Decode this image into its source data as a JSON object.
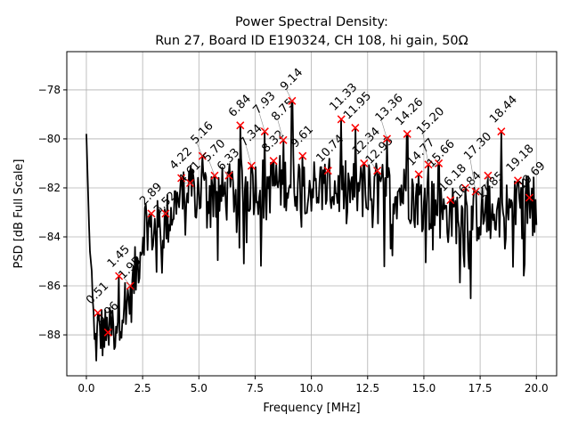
{
  "chart_data": {
    "type": "line",
    "title_line1": "Power Spectral Density:",
    "title_line2": "Run 27, Board ID E190324, CH 108, hi gain, 50Ω",
    "xlabel": "Frequency [MHz]",
    "ylabel": "PSD [dB Full Scale]",
    "xlim": [
      -0.87,
      20.9
    ],
    "ylim": [
      -89.67,
      -76.44
    ],
    "xticks": [
      0,
      2.5,
      5,
      7.5,
      10,
      12.5,
      15,
      17.5,
      20
    ],
    "xtick_labels": [
      "0.0",
      "2.5",
      "5.0",
      "7.5",
      "10.0",
      "12.5",
      "15.0",
      "17.5",
      "20.0"
    ],
    "yticks": [
      -88,
      -86,
      -84,
      -82,
      -80,
      -78
    ],
    "ytick_labels": [
      "−88",
      "−86",
      "−84",
      "−82",
      "−80",
      "−78"
    ],
    "grid": true,
    "line_color": "#000000",
    "marker_color": "#ff0000",
    "peaks": [
      {
        "label": "0.51",
        "x": 0.51,
        "y": -87.1
      },
      {
        "label": "0.96",
        "x": 0.96,
        "y": -87.9
      },
      {
        "label": "1.45",
        "x": 1.45,
        "y": -85.6
      },
      {
        "label": "1.95",
        "x": 1.95,
        "y": -86.0
      },
      {
        "label": "2.89",
        "x": 2.89,
        "y": -83.05
      },
      {
        "label": "3.52",
        "x": 3.52,
        "y": -83.05
      },
      {
        "label": "4.22",
        "x": 4.22,
        "y": -81.6
      },
      {
        "label": "4.61",
        "x": 4.61,
        "y": -81.8
      },
      {
        "label": "5.16",
        "x": 5.16,
        "y": -80.7
      },
      {
        "label": "5.70",
        "x": 5.7,
        "y": -81.5
      },
      {
        "label": "6.33",
        "x": 6.33,
        "y": -81.5
      },
      {
        "label": "6.84",
        "x": 6.84,
        "y": -79.45
      },
      {
        "label": "7.34",
        "x": 7.34,
        "y": -81.1
      },
      {
        "label": "7.93",
        "x": 7.93,
        "y": -79.7
      },
      {
        "label": "8.32",
        "x": 8.32,
        "y": -80.9
      },
      {
        "label": "8.75",
        "x": 8.75,
        "y": -80.05
      },
      {
        "label": "9.14",
        "x": 9.14,
        "y": -78.45
      },
      {
        "label": "9.61",
        "x": 9.61,
        "y": -80.7
      },
      {
        "label": "10.74",
        "x": 10.74,
        "y": -81.3
      },
      {
        "label": "11.33",
        "x": 11.33,
        "y": -79.2
      },
      {
        "label": "11.95",
        "x": 11.95,
        "y": -79.55
      },
      {
        "label": "12.34",
        "x": 12.34,
        "y": -81.0
      },
      {
        "label": "12.93",
        "x": 12.93,
        "y": -81.3
      },
      {
        "label": "13.36",
        "x": 13.36,
        "y": -80.0
      },
      {
        "label": "14.26",
        "x": 14.26,
        "y": -79.8
      },
      {
        "label": "14.77",
        "x": 14.77,
        "y": -81.45
      },
      {
        "label": "15.20",
        "x": 15.2,
        "y": -81.05
      },
      {
        "label": "15.66",
        "x": 15.66,
        "y": -81.0
      },
      {
        "label": "16.18",
        "x": 16.18,
        "y": -82.5
      },
      {
        "label": "16.84",
        "x": 16.84,
        "y": -82.0
      },
      {
        "label": "17.30",
        "x": 17.3,
        "y": -82.15
      },
      {
        "label": "17.85",
        "x": 17.85,
        "y": -81.5
      },
      {
        "label": "18.44",
        "x": 18.44,
        "y": -79.7
      },
      {
        "label": "19.18",
        "x": 19.18,
        "y": -81.7
      },
      {
        "label": "19.69",
        "x": 19.69,
        "y": -82.4
      }
    ],
    "trace_envelope": [
      [
        0.0,
        -79.8
      ],
      [
        0.15,
        -84.5
      ],
      [
        0.25,
        -85.5
      ],
      [
        0.35,
        -89.0
      ],
      [
        0.6,
        -88.3
      ],
      [
        1.0,
        -88.6
      ],
      [
        1.5,
        -87.5
      ],
      [
        2.0,
        -86.8
      ],
      [
        2.4,
        -85.0
      ],
      [
        2.6,
        -83.8
      ],
      [
        3.0,
        -84.2
      ],
      [
        3.5,
        -84.0
      ],
      [
        4.0,
        -83.0
      ],
      [
        5.0,
        -82.6
      ],
      [
        6.0,
        -82.8
      ],
      [
        7.0,
        -82.4
      ],
      [
        8.0,
        -82.4
      ],
      [
        9.0,
        -82.2
      ],
      [
        10.0,
        -82.4
      ],
      [
        11.0,
        -82.5
      ],
      [
        12.0,
        -82.6
      ],
      [
        13.0,
        -82.6
      ],
      [
        14.0,
        -82.6
      ],
      [
        15.0,
        -83.0
      ],
      [
        16.0,
        -83.6
      ],
      [
        17.0,
        -83.6
      ],
      [
        18.0,
        -83.5
      ],
      [
        19.0,
        -83.3
      ],
      [
        20.0,
        -82.8
      ]
    ]
  }
}
